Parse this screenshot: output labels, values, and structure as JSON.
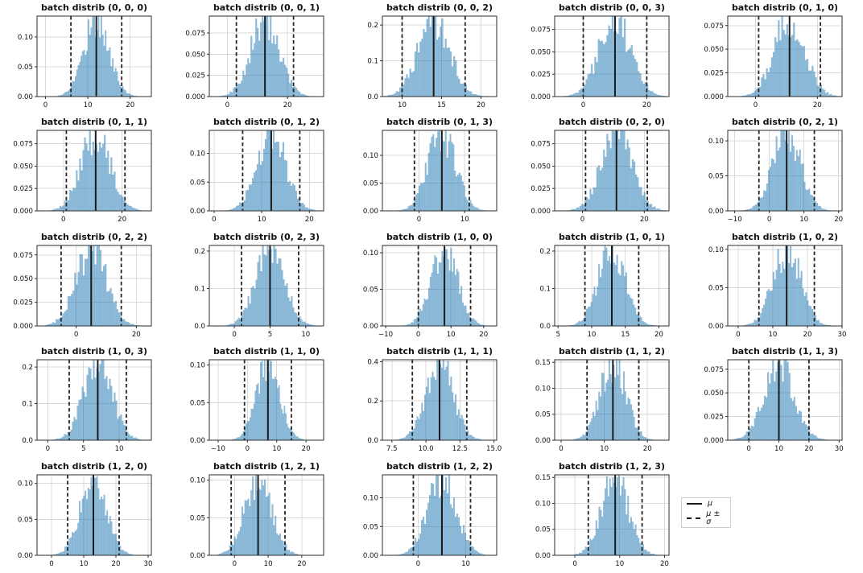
{
  "figure": {
    "background": "#ffffff",
    "bar_color": "#1f77b4",
    "bar_alpha": 0.5,
    "mu_line_color": "#1a1a1a",
    "sigma_line_color": "#262626",
    "grid_color": "#d9d9d9",
    "spine_color": "#2e2e2e",
    "title_prefix": "batch distrib"
  },
  "legend": {
    "mu_label": "μ",
    "mu_sigma_label": "μ ± σ",
    "position": "bottom-right-cell"
  },
  "chart_data": [
    {
      "type": "histogram",
      "title": "batch distrib (0, 0, 0)",
      "batch_index": [
        0,
        0,
        0
      ],
      "mu": 12,
      "sigma": 6,
      "xlim": [
        -2,
        25
      ],
      "xticks": [
        0,
        10,
        20
      ],
      "xtick_labels": [
        "0",
        "10",
        "20"
      ],
      "ytick_labels": [
        "0.00",
        "0.05",
        "0.10"
      ],
      "ylim_top": 0.135
    },
    {
      "type": "histogram",
      "title": "batch distrib (0, 0, 1)",
      "batch_index": [
        0,
        0,
        1
      ],
      "mu": 12.5,
      "sigma": 9.5,
      "xlim": [
        -6,
        32
      ],
      "xticks": [
        0,
        20
      ],
      "xtick_labels": [
        "0",
        "20"
      ],
      "ytick_labels": [
        "0.000",
        "0.025",
        "0.050",
        "0.075"
      ],
      "ylim_top": 0.095
    },
    {
      "type": "histogram",
      "title": "batch distrib (0, 0, 2)",
      "batch_index": [
        0,
        0,
        2
      ],
      "mu": 14,
      "sigma": 4,
      "xlim": [
        7.5,
        22
      ],
      "xticks": [
        10,
        15,
        20
      ],
      "xtick_labels": [
        "10",
        "15",
        "20"
      ],
      "ytick_labels": [
        "0.0",
        "0.1",
        "0.2"
      ],
      "ylim_top": 0.225
    },
    {
      "type": "histogram",
      "title": "batch distrib (0, 0, 3)",
      "batch_index": [
        0,
        0,
        3
      ],
      "mu": 10,
      "sigma": 10,
      "xlim": [
        -9,
        27
      ],
      "xticks": [
        0,
        20
      ],
      "xtick_labels": [
        "0",
        "20"
      ],
      "ytick_labels": [
        "0.000",
        "0.025",
        "0.050",
        "0.075"
      ],
      "ylim_top": 0.09
    },
    {
      "type": "histogram",
      "title": "batch distrib (0, 1, 0)",
      "batch_index": [
        0,
        1,
        0
      ],
      "mu": 11,
      "sigma": 10,
      "xlim": [
        -9,
        28
      ],
      "xticks": [
        0,
        20
      ],
      "xtick_labels": [
        "0",
        "20"
      ],
      "ytick_labels": [
        "0.000",
        "0.025",
        "0.050",
        "0.075"
      ],
      "ylim_top": 0.085
    },
    {
      "type": "histogram",
      "title": "batch distrib (0, 1, 1)",
      "batch_index": [
        0,
        1,
        1
      ],
      "mu": 11,
      "sigma": 10,
      "xlim": [
        -9,
        30
      ],
      "xticks": [
        0,
        20
      ],
      "xtick_labels": [
        "0",
        "20"
      ],
      "ytick_labels": [
        "0.000",
        "0.025",
        "0.050",
        "0.075"
      ],
      "ylim_top": 0.09
    },
    {
      "type": "histogram",
      "title": "batch distrib (0, 1, 2)",
      "batch_index": [
        0,
        1,
        2
      ],
      "mu": 12,
      "sigma": 6,
      "xlim": [
        -1,
        23
      ],
      "xticks": [
        0,
        10,
        20
      ],
      "xtick_labels": [
        "0",
        "10",
        "20"
      ],
      "ytick_labels": [
        "0.00",
        "0.05",
        "0.10"
      ],
      "ylim_top": 0.14
    },
    {
      "type": "histogram",
      "title": "batch distrib (0, 1, 3)",
      "batch_index": [
        0,
        1,
        3
      ],
      "mu": 5,
      "sigma": 6,
      "xlim": [
        -8,
        17
      ],
      "xticks": [
        0,
        10
      ],
      "xtick_labels": [
        "0",
        "10"
      ],
      "ytick_labels": [
        "0.00",
        "0.05",
        "0.10"
      ],
      "ylim_top": 0.145
    },
    {
      "type": "histogram",
      "title": "batch distrib (0, 2, 0)",
      "batch_index": [
        0,
        2,
        0
      ],
      "mu": 11,
      "sigma": 10,
      "xlim": [
        -9,
        28
      ],
      "xticks": [
        0,
        20
      ],
      "xtick_labels": [
        "0",
        "20"
      ],
      "ytick_labels": [
        "0.000",
        "0.025",
        "0.050",
        "0.075"
      ],
      "ylim_top": 0.09
    },
    {
      "type": "histogram",
      "title": "batch distrib (0, 2, 1)",
      "batch_index": [
        0,
        2,
        1
      ],
      "mu": 5,
      "sigma": 8,
      "xlim": [
        -12,
        21
      ],
      "xticks": [
        -10,
        0,
        10,
        20
      ],
      "xtick_labels": [
        "−10",
        "0",
        "10",
        "20"
      ],
      "ytick_labels": [
        "0.00",
        "0.05",
        "0.10"
      ],
      "ylim_top": 0.115
    },
    {
      "type": "histogram",
      "title": "batch distrib (0, 2, 2)",
      "batch_index": [
        0,
        2,
        2
      ],
      "mu": 5,
      "sigma": 10,
      "xlim": [
        -13,
        25
      ],
      "xticks": [
        0,
        20
      ],
      "xtick_labels": [
        "0",
        "20"
      ],
      "ytick_labels": [
        "0.000",
        "0.025",
        "0.050",
        "0.075"
      ],
      "ylim_top": 0.085
    },
    {
      "type": "histogram",
      "title": "batch distrib (0, 2, 3)",
      "batch_index": [
        0,
        2,
        3
      ],
      "mu": 5,
      "sigma": 4,
      "xlim": [
        -3.5,
        12.5
      ],
      "xticks": [
        0,
        5,
        10
      ],
      "xtick_labels": [
        "0",
        "5",
        "10"
      ],
      "ytick_labels": [
        "0.0",
        "0.1",
        "0.2"
      ],
      "ylim_top": 0.215
    },
    {
      "type": "histogram",
      "title": "batch distrib (1, 0, 0)",
      "batch_index": [
        1,
        0,
        0
      ],
      "mu": 8,
      "sigma": 8,
      "xlim": [
        -11,
        24
      ],
      "xticks": [
        -10,
        0,
        10,
        20
      ],
      "xtick_labels": [
        "−10",
        "0",
        "10",
        "20"
      ],
      "ytick_labels": [
        "0.00",
        "0.05",
        "0.10"
      ],
      "ylim_top": 0.11
    },
    {
      "type": "histogram",
      "title": "batch distrib (1, 0, 1)",
      "batch_index": [
        1,
        0,
        1
      ],
      "mu": 13,
      "sigma": 4,
      "xlim": [
        4.5,
        21.5
      ],
      "xticks": [
        5,
        10,
        15,
        20
      ],
      "xtick_labels": [
        "5",
        "10",
        "15",
        "20"
      ],
      "ytick_labels": [
        "0.0",
        "0.1",
        "0.2"
      ],
      "ylim_top": 0.215
    },
    {
      "type": "histogram",
      "title": "batch distrib (1, 0, 2)",
      "batch_index": [
        1,
        0,
        2
      ],
      "mu": 14,
      "sigma": 8,
      "xlim": [
        -3,
        30
      ],
      "xticks": [
        0,
        10,
        20,
        30
      ],
      "xtick_labels": [
        "0",
        "10",
        "20",
        "30"
      ],
      "ytick_labels": [
        "0.00",
        "0.05",
        "0.10"
      ],
      "ylim_top": 0.105
    },
    {
      "type": "histogram",
      "title": "batch distrib (1, 0, 3)",
      "batch_index": [
        1,
        0,
        3
      ],
      "mu": 7,
      "sigma": 4,
      "xlim": [
        -1.5,
        14.5
      ],
      "xticks": [
        0,
        5,
        10
      ],
      "xtick_labels": [
        "0",
        "5",
        "10"
      ],
      "ytick_labels": [
        "0.0",
        "0.1",
        "0.2"
      ],
      "ylim_top": 0.22
    },
    {
      "type": "histogram",
      "title": "batch distrib (1, 1, 0)",
      "batch_index": [
        1,
        1,
        0
      ],
      "mu": 7,
      "sigma": 8,
      "xlim": [
        -13,
        26
      ],
      "xticks": [
        -10,
        0,
        10,
        20
      ],
      "xtick_labels": [
        "−10",
        "0",
        "10",
        "20"
      ],
      "ytick_labels": [
        "0.00",
        "0.05",
        "0.10"
      ],
      "ylim_top": 0.107
    },
    {
      "type": "histogram",
      "title": "batch distrib (1, 1, 1)",
      "batch_index": [
        1,
        1,
        1
      ],
      "mu": 11,
      "sigma": 2,
      "xlim": [
        6.8,
        15.2
      ],
      "xticks": [
        7.5,
        10,
        12.5,
        15
      ],
      "xtick_labels": [
        "7.5",
        "10.0",
        "12.5",
        "15.0"
      ],
      "ytick_labels": [
        "0.0",
        "0.2",
        "0.4"
      ],
      "ylim_top": 0.41
    },
    {
      "type": "histogram",
      "title": "batch distrib (1, 1, 2)",
      "batch_index": [
        1,
        1,
        2
      ],
      "mu": 12,
      "sigma": 6,
      "xlim": [
        -1.5,
        25
      ],
      "xticks": [
        0,
        10,
        20
      ],
      "xtick_labels": [
        "0",
        "10",
        "20"
      ],
      "ytick_labels": [
        "0.00",
        "0.05",
        "0.10",
        "0.15"
      ],
      "ylim_top": 0.155
    },
    {
      "type": "histogram",
      "title": "batch distrib (1, 1, 3)",
      "batch_index": [
        1,
        1,
        3
      ],
      "mu": 10,
      "sigma": 10,
      "xlim": [
        -7,
        31
      ],
      "xticks": [
        0,
        10,
        20,
        30
      ],
      "xtick_labels": [
        "0",
        "10",
        "20",
        "30"
      ],
      "ytick_labels": [
        "0.000",
        "0.025",
        "0.050",
        "0.075"
      ],
      "ylim_top": 0.085
    },
    {
      "type": "histogram",
      "title": "batch distrib (1, 2, 0)",
      "batch_index": [
        1,
        2,
        0
      ],
      "mu": 13,
      "sigma": 8,
      "xlim": [
        -4.5,
        31
      ],
      "xticks": [
        0,
        10,
        20,
        30
      ],
      "xtick_labels": [
        "0",
        "10",
        "20",
        "30"
      ],
      "ytick_labels": [
        "0.00",
        "0.05",
        "0.10"
      ],
      "ylim_top": 0.112
    },
    {
      "type": "histogram",
      "title": "batch distrib (1, 2, 1)",
      "batch_index": [
        1,
        2,
        1
      ],
      "mu": 7,
      "sigma": 8,
      "xlim": [
        -7.5,
        26.5
      ],
      "xticks": [
        0,
        10,
        20
      ],
      "xtick_labels": [
        "0",
        "10",
        "20"
      ],
      "ytick_labels": [
        "0.00",
        "0.05",
        "0.10"
      ],
      "ylim_top": 0.107
    },
    {
      "type": "histogram",
      "title": "batch distrib (1, 2, 2)",
      "batch_index": [
        1,
        2,
        2
      ],
      "mu": 5,
      "sigma": 6,
      "xlim": [
        -7.5,
        16.5
      ],
      "xticks": [
        0,
        10
      ],
      "xtick_labels": [
        "0",
        "10"
      ],
      "ytick_labels": [
        "0.00",
        "0.05",
        "0.10"
      ],
      "ylim_top": 0.14
    },
    {
      "type": "histogram",
      "title": "batch distrib (1, 2, 3)",
      "batch_index": [
        1,
        2,
        3
      ],
      "mu": 9,
      "sigma": 6,
      "xlim": [
        -4.5,
        21
      ],
      "xticks": [
        0,
        10,
        20
      ],
      "xtick_labels": [
        "0",
        "10",
        "20"
      ],
      "ytick_labels": [
        "0.00",
        "0.05",
        "0.10",
        "0.15"
      ],
      "ylim_top": 0.155
    }
  ]
}
